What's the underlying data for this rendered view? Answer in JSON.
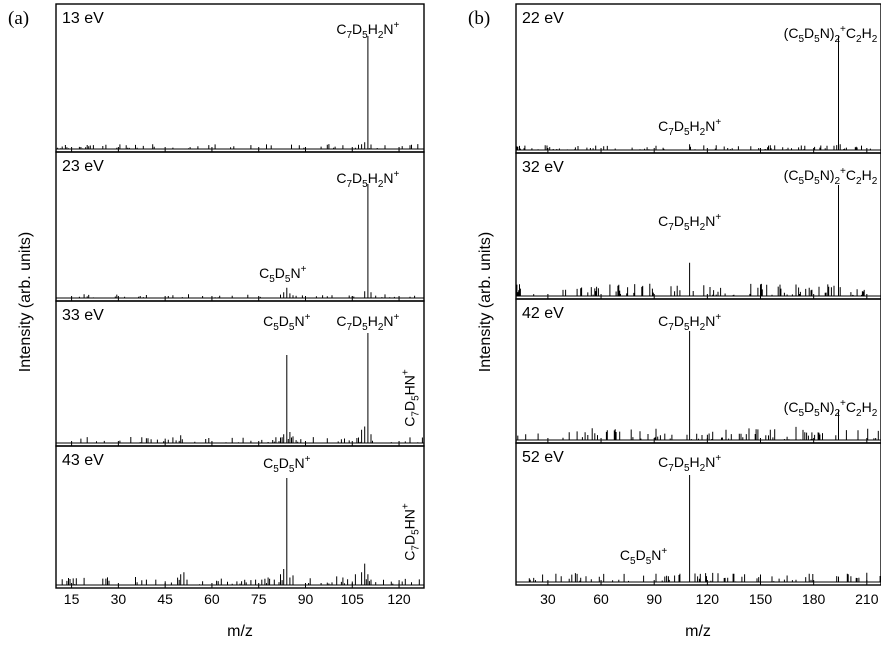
{
  "figure": {
    "background": "#ffffff",
    "line_color": "#000000"
  },
  "chart_data": [
    {
      "type": "line",
      "panel_label": "(a)",
      "xlabel": "m/z",
      "ylabel": "Intensity (arb. units)",
      "xlim": [
        10,
        128
      ],
      "ylim": [
        0,
        1.0
      ],
      "xticks": [
        15,
        30,
        45,
        60,
        75,
        90,
        105,
        120
      ],
      "grid": false,
      "subplots": [
        {
          "energy_label": "13 eV",
          "series": [
            {
              "kind": "peaks",
              "x": [
                109,
                110,
                111
              ],
              "y": [
                0.06,
                1.0,
                0.04
              ]
            },
            {
              "kind": "noise_floor",
              "x_range": [
                10,
                128
              ],
              "level": 0.02
            }
          ],
          "annotations": [
            {
              "id": "a13_main",
              "x": 110,
              "y": 1.0,
              "parts": [
                [
                  "C",
                  ""
                ],
                [
                  "7",
                  "sub"
                ],
                [
                  "D",
                  ""
                ],
                [
                  "5",
                  "sub"
                ],
                [
                  "H",
                  ""
                ],
                [
                  "2",
                  "sub"
                ],
                [
                  "N",
                  ""
                ],
                [
                  "+",
                  "sup"
                ]
              ]
            }
          ]
        },
        {
          "energy_label": "23 eV",
          "series": [
            {
              "kind": "peaks",
              "x": [
                82,
                83,
                84,
                85,
                109,
                110,
                111
              ],
              "y": [
                0.03,
                0.05,
                0.09,
                0.04,
                0.06,
                1.0,
                0.05
              ]
            },
            {
              "kind": "noise_floor",
              "x_range": [
                10,
                128
              ],
              "level": 0.015
            }
          ],
          "annotations": [
            {
              "id": "a23_c5",
              "x": 84,
              "y": 0.12,
              "parts": [
                [
                  "C",
                  ""
                ],
                [
                  "5",
                  "sub"
                ],
                [
                  "D",
                  ""
                ],
                [
                  "5",
                  "sub"
                ],
                [
                  "N",
                  ""
                ],
                [
                  "+",
                  "sup"
                ]
              ]
            },
            {
              "id": "a23_main",
              "x": 110,
              "y": 1.0,
              "parts": [
                [
                  "C",
                  ""
                ],
                [
                  "7",
                  "sub"
                ],
                [
                  "D",
                  ""
                ],
                [
                  "5",
                  "sub"
                ],
                [
                  "H",
                  ""
                ],
                [
                  "2",
                  "sub"
                ],
                [
                  "N",
                  ""
                ],
                [
                  "+",
                  "sup"
                ]
              ]
            }
          ]
        },
        {
          "energy_label": "33 eV",
          "series": [
            {
              "kind": "peaks",
              "x": [
                50,
                82,
                83,
                84,
                85,
                86,
                107,
                108,
                109,
                110,
                111
              ],
              "y": [
                0.07,
                0.05,
                0.08,
                0.8,
                0.1,
                0.06,
                0.05,
                0.12,
                0.15,
                1.0,
                0.08
              ]
            },
            {
              "kind": "noise_floor",
              "x_range": [
                10,
                128
              ],
              "level": 0.025
            }
          ],
          "annotations": [
            {
              "id": "a33_c5",
              "x": 84,
              "y": 0.8,
              "parts": [
                [
                  "C",
                  ""
                ],
                [
                  "5",
                  "sub"
                ],
                [
                  "D",
                  ""
                ],
                [
                  "5",
                  "sub"
                ],
                [
                  "N",
                  ""
                ],
                [
                  "+",
                  "sup"
                ]
              ]
            },
            {
              "id": "a33_main",
              "x": 110,
              "y": 1.0,
              "parts": [
                [
                  "C",
                  ""
                ],
                [
                  "7",
                  "sub"
                ],
                [
                  "D",
                  ""
                ],
                [
                  "5",
                  "sub"
                ],
                [
                  "H",
                  ""
                ],
                [
                  "2",
                  "sub"
                ],
                [
                  "N",
                  ""
                ],
                [
                  "+",
                  "sup"
                ]
              ]
            },
            {
              "id": "a33_hn",
              "x": 109,
              "y": 0.15,
              "rotated": true,
              "parts": [
                [
                  "C",
                  ""
                ],
                [
                  "7",
                  "sub"
                ],
                [
                  "D",
                  ""
                ],
                [
                  "5",
                  "sub"
                ],
                [
                  "HN",
                  ""
                ],
                [
                  "+",
                  "sup"
                ]
              ]
            }
          ]
        },
        {
          "energy_label": "43 eV",
          "series": [
            {
              "kind": "peaks",
              "x": [
                25,
                26,
                27,
                39,
                42,
                50,
                51,
                52,
                63,
                74,
                76,
                78,
                80,
                82,
                83,
                84,
                85,
                86,
                100,
                102,
                106,
                108,
                109,
                110,
                111
              ],
              "y": [
                0.06,
                0.06,
                0.04,
                0.05,
                0.05,
                0.1,
                0.12,
                0.05,
                0.05,
                0.05,
                0.05,
                0.07,
                0.05,
                0.1,
                0.15,
                1.0,
                0.07,
                0.09,
                0.08,
                0.07,
                0.1,
                0.12,
                0.2,
                0.1,
                0.05
              ]
            },
            {
              "kind": "noise_floor",
              "x_range": [
                10,
                128
              ],
              "level": 0.035
            }
          ],
          "annotations": [
            {
              "id": "a43_c5",
              "x": 84,
              "y": 1.0,
              "parts": [
                [
                  "C",
                  ""
                ],
                [
                  "5",
                  "sub"
                ],
                [
                  "D",
                  ""
                ],
                [
                  "5",
                  "sub"
                ],
                [
                  "N",
                  ""
                ],
                [
                  "+",
                  "sup"
                ]
              ]
            },
            {
              "id": "a43_hn",
              "x": 109,
              "y": 0.2,
              "rotated": true,
              "parts": [
                [
                  "C",
                  ""
                ],
                [
                  "7",
                  "sub"
                ],
                [
                  "D",
                  ""
                ],
                [
                  "5",
                  "sub"
                ],
                [
                  "HN",
                  ""
                ],
                [
                  "+",
                  "sup"
                ]
              ]
            }
          ]
        }
      ]
    },
    {
      "type": "line",
      "panel_label": "(b)",
      "xlabel": "m/z",
      "ylabel": "Intensity (arb. units)",
      "xlim": [
        12,
        218
      ],
      "ylim": [
        0,
        1.0
      ],
      "xticks": [
        30,
        60,
        90,
        120,
        150,
        180,
        210
      ],
      "grid": false,
      "subplots": [
        {
          "energy_label": "22 eV",
          "series": [
            {
              "kind": "peaks",
              "x": [
                110,
                194,
                195
              ],
              "y": [
                0.05,
                1.0,
                0.05
              ]
            },
            {
              "kind": "noise_floor",
              "x_range": [
                12,
                218
              ],
              "level": 0.02
            }
          ],
          "annotations": [
            {
              "id": "b22_top",
              "x": 194,
              "y": 1.0,
              "parts": [
                [
                  "(C",
                  ""
                ],
                [
                  "5",
                  "sub"
                ],
                [
                  "D",
                  ""
                ],
                [
                  "5",
                  "sub"
                ],
                [
                  "N)",
                  ""
                ],
                [
                  "2",
                  "sub"
                ],
                [
                  "+",
                  "sup"
                ],
                [
                  "C",
                  ""
                ],
                [
                  "2",
                  "sub"
                ],
                [
                  "H",
                  ""
                ],
                [
                  "2",
                  "sub"
                ]
              ]
            },
            {
              "id": "b22_c7",
              "x": 110,
              "y": 0.05,
              "parts": [
                [
                  "C",
                  ""
                ],
                [
                  "7",
                  "sub"
                ],
                [
                  "D",
                  ""
                ],
                [
                  "5",
                  "sub"
                ],
                [
                  "H",
                  ""
                ],
                [
                  "2",
                  "sub"
                ],
                [
                  "N",
                  ""
                ],
                [
                  "+",
                  "sup"
                ]
              ]
            }
          ]
        },
        {
          "energy_label": "32 eV",
          "series": [
            {
              "kind": "peaks",
              "x": [
                110,
                194,
                195
              ],
              "y": [
                0.3,
                1.0,
                0.08
              ]
            },
            {
              "kind": "noise_floor",
              "x_range": [
                12,
                218
              ],
              "level": 0.05
            }
          ],
          "annotations": [
            {
              "id": "b32_top",
              "x": 194,
              "y": 1.0,
              "parts": [
                [
                  "(C",
                  ""
                ],
                [
                  "5",
                  "sub"
                ],
                [
                  "D",
                  ""
                ],
                [
                  "5",
                  "sub"
                ],
                [
                  "N)",
                  ""
                ],
                [
                  "2",
                  "sub"
                ],
                [
                  "+",
                  "sup"
                ],
                [
                  "C",
                  ""
                ],
                [
                  "2",
                  "sub"
                ],
                [
                  "H",
                  ""
                ],
                [
                  "2",
                  "sub"
                ]
              ]
            },
            {
              "id": "b32_c7",
              "x": 110,
              "y": 0.3,
              "parts": [
                [
                  "C",
                  ""
                ],
                [
                  "7",
                  "sub"
                ],
                [
                  "D",
                  ""
                ],
                [
                  "5",
                  "sub"
                ],
                [
                  "H",
                  ""
                ],
                [
                  "2",
                  "sub"
                ],
                [
                  "N",
                  ""
                ],
                [
                  "+",
                  "sup"
                ]
              ]
            }
          ]
        },
        {
          "energy_label": "42 eV",
          "series": [
            {
              "kind": "peaks",
              "x": [
                82,
                110,
                170,
                194
              ],
              "y": [
                0.08,
                1.0,
                0.12,
                0.28
              ]
            },
            {
              "kind": "noise_floor",
              "x_range": [
                12,
                218
              ],
              "level": 0.05
            }
          ],
          "annotations": [
            {
              "id": "b42_c7",
              "x": 110,
              "y": 1.0,
              "parts": [
                [
                  "C",
                  ""
                ],
                [
                  "7",
                  "sub"
                ],
                [
                  "D",
                  ""
                ],
                [
                  "5",
                  "sub"
                ],
                [
                  "H",
                  ""
                ],
                [
                  "2",
                  "sub"
                ],
                [
                  "N",
                  ""
                ],
                [
                  "+",
                  "sup"
                ]
              ]
            },
            {
              "id": "b42_dim",
              "x": 194,
              "y": 0.28,
              "parts": [
                [
                  "(C",
                  ""
                ],
                [
                  "5",
                  "sub"
                ],
                [
                  "D",
                  ""
                ],
                [
                  "5",
                  "sub"
                ],
                [
                  "N)",
                  ""
                ],
                [
                  "2",
                  "sub"
                ],
                [
                  "+",
                  "sup"
                ],
                [
                  "C",
                  ""
                ],
                [
                  "2",
                  "sub"
                ],
                [
                  "H",
                  ""
                ],
                [
                  "2",
                  "sub"
                ]
              ]
            }
          ]
        },
        {
          "energy_label": "52 eV",
          "series": [
            {
              "kind": "peaks",
              "x": [
                84,
                110,
                194
              ],
              "y": [
                0.06,
                1.0,
                0.05
              ]
            },
            {
              "kind": "noise_floor",
              "x_range": [
                12,
                218
              ],
              "level": 0.04
            }
          ],
          "annotations": [
            {
              "id": "b52_c7",
              "x": 110,
              "y": 1.0,
              "parts": [
                [
                  "C",
                  ""
                ],
                [
                  "7",
                  "sub"
                ],
                [
                  "D",
                  ""
                ],
                [
                  "5",
                  "sub"
                ],
                [
                  "H",
                  ""
                ],
                [
                  "2",
                  "sub"
                ],
                [
                  "N",
                  ""
                ],
                [
                  "+",
                  "sup"
                ]
              ]
            },
            {
              "id": "b52_c5",
              "x": 84,
              "y": 0.06,
              "parts": [
                [
                  "C",
                  ""
                ],
                [
                  "5",
                  "sub"
                ],
                [
                  "D",
                  ""
                ],
                [
                  "5",
                  "sub"
                ],
                [
                  "N",
                  ""
                ],
                [
                  "+",
                  "sup"
                ]
              ]
            }
          ]
        }
      ]
    }
  ]
}
